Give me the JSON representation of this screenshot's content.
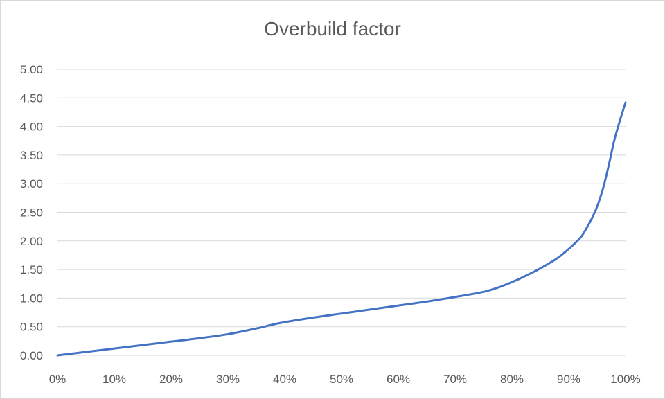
{
  "chart_data": {
    "type": "line",
    "title": "Overbuild factor",
    "xlabel": "",
    "ylabel": "",
    "xlim": [
      0,
      100
    ],
    "ylim": [
      0,
      5
    ],
    "grid": true,
    "legend": "none",
    "x_tick_labels": [
      "0%",
      "10%",
      "20%",
      "30%",
      "40%",
      "50%",
      "60%",
      "70%",
      "80%",
      "90%",
      "100%"
    ],
    "y_tick_labels": [
      "0.00",
      "0.50",
      "1.00",
      "1.50",
      "2.00",
      "2.50",
      "3.00",
      "3.50",
      "4.00",
      "4.50",
      "5.00"
    ],
    "series": [
      {
        "color": "#4472c4",
        "x": [
          0,
          5,
          10,
          15,
          20,
          25,
          30,
          35,
          38,
          40,
          45,
          50,
          55,
          60,
          65,
          70,
          75,
          78,
          80,
          82,
          85,
          88,
          90,
          92,
          93,
          94,
          95,
          96,
          97,
          98,
          99,
          100
        ],
        "y": [
          0.0,
          0.06,
          0.12,
          0.18,
          0.24,
          0.3,
          0.37,
          0.47,
          0.54,
          0.58,
          0.66,
          0.73,
          0.8,
          0.87,
          0.94,
          1.02,
          1.11,
          1.2,
          1.28,
          1.37,
          1.52,
          1.7,
          1.86,
          2.05,
          2.2,
          2.38,
          2.6,
          2.9,
          3.3,
          3.75,
          4.1,
          4.42
        ]
      }
    ]
  }
}
